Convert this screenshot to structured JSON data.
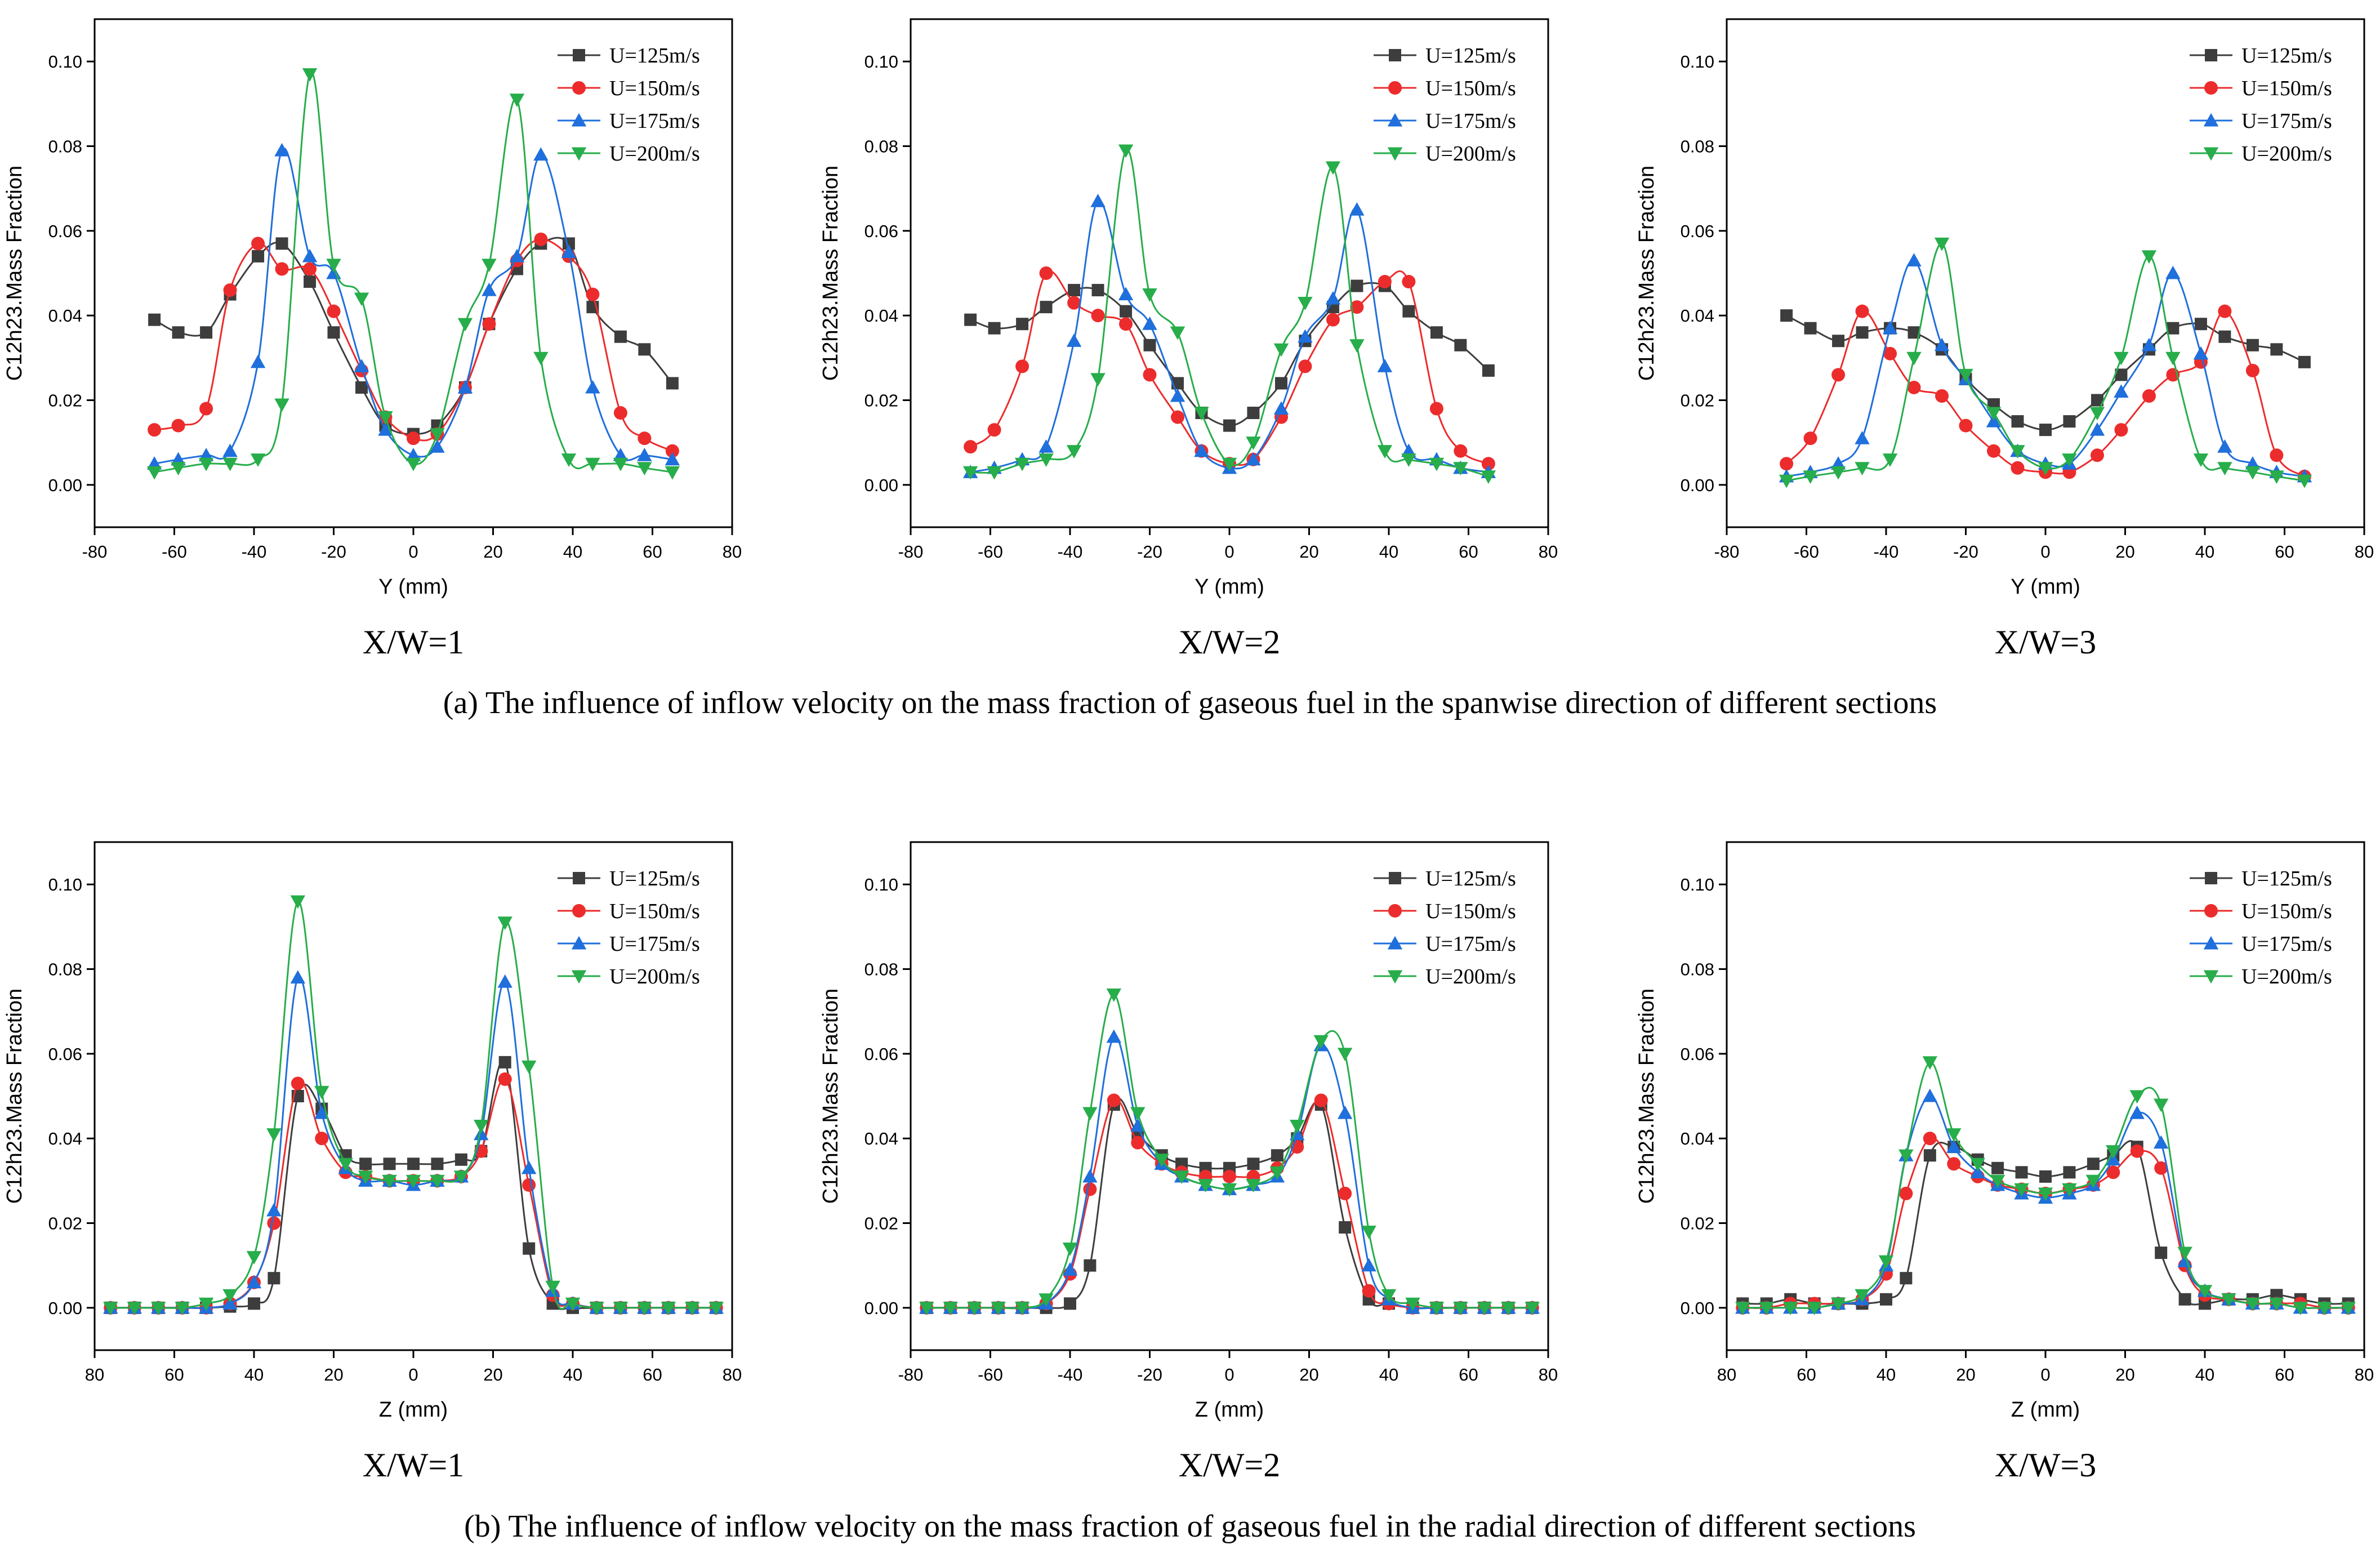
{
  "chart_data": [
    {
      "type": "line",
      "panel": "X/W=1",
      "row": "a",
      "xlabel": "Y (mm)",
      "ylabel": "C12h23.Mass Fraction",
      "xlim": [
        -80,
        80
      ],
      "ylim": [
        -0.01,
        0.11
      ],
      "xticks": [
        -80,
        -60,
        -40,
        -20,
        0,
        20,
        40,
        60,
        80
      ],
      "xtick_labels": [
        "-80",
        "-60",
        "-40",
        "-20",
        "0",
        "20",
        "40",
        "60",
        "80"
      ],
      "yticks": [
        0.0,
        0.02,
        0.04,
        0.06,
        0.08,
        0.1
      ],
      "ytick_labels": [
        "0.00",
        "0.02",
        "0.04",
        "0.06",
        "0.08",
        "0.10"
      ],
      "x": [
        -65,
        -59,
        -52,
        -46,
        -39,
        -33,
        -26,
        -20,
        -13,
        -7,
        0,
        6,
        13,
        19,
        26,
        32,
        39,
        45,
        52,
        58,
        65
      ],
      "series": [
        {
          "name": "U=125m/s",
          "values": [
            0.039,
            0.036,
            0.036,
            0.045,
            0.054,
            0.057,
            0.048,
            0.036,
            0.023,
            0.014,
            0.012,
            0.014,
            0.023,
            0.038,
            0.051,
            0.057,
            0.057,
            0.042,
            0.035,
            0.032,
            0.024
          ]
        },
        {
          "name": "U=150m/s",
          "values": [
            0.013,
            0.014,
            0.018,
            0.046,
            0.057,
            0.051,
            0.051,
            0.041,
            0.027,
            0.016,
            0.011,
            0.012,
            0.023,
            0.038,
            0.053,
            0.058,
            0.054,
            0.045,
            0.017,
            0.011,
            0.008
          ]
        },
        {
          "name": "U=175m/s",
          "values": [
            0.005,
            0.006,
            0.007,
            0.008,
            0.029,
            0.079,
            0.054,
            0.05,
            0.028,
            0.013,
            0.007,
            0.009,
            0.023,
            0.046,
            0.054,
            0.078,
            0.055,
            0.023,
            0.007,
            0.007,
            0.006
          ]
        },
        {
          "name": "U=200m/s",
          "values": [
            0.003,
            0.004,
            0.005,
            0.005,
            0.006,
            0.019,
            0.097,
            0.052,
            0.044,
            0.016,
            0.005,
            0.012,
            0.038,
            0.052,
            0.091,
            0.03,
            0.006,
            0.005,
            0.005,
            0.004,
            0.003
          ]
        }
      ]
    },
    {
      "type": "line",
      "panel": "X/W=2",
      "row": "a",
      "xlabel": "Y (mm)",
      "ylabel": "C12h23.Mass Fraction",
      "xlim": [
        -80,
        80
      ],
      "ylim": [
        -0.01,
        0.11
      ],
      "xticks": [
        -80,
        -60,
        -40,
        -20,
        0,
        20,
        40,
        60,
        80
      ],
      "xtick_labels": [
        "-80",
        "-60",
        "-40",
        "-20",
        "0",
        "20",
        "40",
        "60",
        "80"
      ],
      "yticks": [
        0.0,
        0.02,
        0.04,
        0.06,
        0.08,
        0.1
      ],
      "ytick_labels": [
        "0.00",
        "0.02",
        "0.04",
        "0.06",
        "0.08",
        "0.10"
      ],
      "x": [
        -65,
        -59,
        -52,
        -46,
        -39,
        -33,
        -26,
        -20,
        -13,
        -7,
        0,
        6,
        13,
        19,
        26,
        32,
        39,
        45,
        52,
        58,
        65
      ],
      "series": [
        {
          "name": "U=125m/s",
          "values": [
            0.039,
            0.037,
            0.038,
            0.042,
            0.046,
            0.046,
            0.041,
            0.033,
            0.024,
            0.017,
            0.014,
            0.017,
            0.024,
            0.034,
            0.042,
            0.047,
            0.047,
            0.041,
            0.036,
            0.033,
            0.027
          ]
        },
        {
          "name": "U=150m/s",
          "values": [
            0.009,
            0.013,
            0.028,
            0.05,
            0.043,
            0.04,
            0.038,
            0.026,
            0.016,
            0.008,
            0.005,
            0.006,
            0.016,
            0.028,
            0.039,
            0.042,
            0.048,
            0.048,
            0.018,
            0.008,
            0.005
          ]
        },
        {
          "name": "U=175m/s",
          "values": [
            0.003,
            0.004,
            0.006,
            0.009,
            0.034,
            0.067,
            0.045,
            0.038,
            0.021,
            0.008,
            0.004,
            0.006,
            0.018,
            0.035,
            0.044,
            0.065,
            0.028,
            0.008,
            0.006,
            0.004,
            0.003
          ]
        },
        {
          "name": "U=200m/s",
          "values": [
            0.003,
            0.003,
            0.005,
            0.006,
            0.008,
            0.025,
            0.079,
            0.045,
            0.036,
            0.017,
            0.005,
            0.01,
            0.032,
            0.043,
            0.075,
            0.033,
            0.008,
            0.006,
            0.005,
            0.004,
            0.002
          ]
        }
      ]
    },
    {
      "type": "line",
      "panel": "X/W=3",
      "row": "a",
      "xlabel": "Y (mm)",
      "ylabel": "C12h23.Mass Fraction",
      "xlim": [
        -80,
        80
      ],
      "ylim": [
        -0.01,
        0.11
      ],
      "xticks": [
        -80,
        -60,
        -40,
        -20,
        0,
        20,
        40,
        60,
        80
      ],
      "xtick_labels": [
        "-80",
        "-60",
        "-40",
        "-20",
        "0",
        "20",
        "40",
        "60",
        "80"
      ],
      "yticks": [
        0.0,
        0.02,
        0.04,
        0.06,
        0.08,
        0.1
      ],
      "ytick_labels": [
        "0.00",
        "0.02",
        "0.04",
        "0.06",
        "0.08",
        "0.10"
      ],
      "x": [
        -65,
        -59,
        -52,
        -46,
        -39,
        -33,
        -26,
        -20,
        -13,
        -7,
        0,
        6,
        13,
        19,
        26,
        32,
        39,
        45,
        52,
        58,
        65
      ],
      "series": [
        {
          "name": "U=125m/s",
          "values": [
            0.04,
            0.037,
            0.034,
            0.036,
            0.037,
            0.036,
            0.032,
            0.025,
            0.019,
            0.015,
            0.013,
            0.015,
            0.02,
            0.026,
            0.032,
            0.037,
            0.038,
            0.035,
            0.033,
            0.032,
            0.029
          ]
        },
        {
          "name": "U=150m/s",
          "values": [
            0.005,
            0.011,
            0.026,
            0.041,
            0.031,
            0.023,
            0.021,
            0.014,
            0.008,
            0.004,
            0.003,
            0.003,
            0.007,
            0.013,
            0.021,
            0.026,
            0.029,
            0.041,
            0.027,
            0.007,
            0.002
          ]
        },
        {
          "name": "U=175m/s",
          "values": [
            0.002,
            0.003,
            0.005,
            0.011,
            0.037,
            0.053,
            0.033,
            0.025,
            0.015,
            0.008,
            0.005,
            0.005,
            0.013,
            0.022,
            0.033,
            0.05,
            0.031,
            0.009,
            0.005,
            0.003,
            0.002
          ]
        },
        {
          "name": "U=200m/s",
          "values": [
            0.001,
            0.002,
            0.003,
            0.004,
            0.006,
            0.03,
            0.057,
            0.026,
            0.017,
            0.008,
            0.004,
            0.006,
            0.017,
            0.03,
            0.054,
            0.03,
            0.006,
            0.004,
            0.003,
            0.002,
            0.001
          ]
        }
      ]
    },
    {
      "type": "line",
      "panel": "X/W=1",
      "row": "b",
      "xlabel": "Z (mm)",
      "ylabel": "C12h23.Mass Fraction",
      "xlim": [
        -80,
        80
      ],
      "ylim": [
        -0.01,
        0.11
      ],
      "xticks": [
        -80,
        -60,
        -40,
        -20,
        0,
        20,
        40,
        60,
        80
      ],
      "xtick_labels": [
        "80",
        "60",
        "40",
        "20",
        "0",
        "20",
        "40",
        "60",
        "80"
      ],
      "yticks": [
        0.0,
        0.02,
        0.04,
        0.06,
        0.08,
        0.1
      ],
      "ytick_labels": [
        "0.00",
        "0.02",
        "0.04",
        "0.06",
        "0.08",
        "0.10"
      ],
      "x": [
        -76,
        -70,
        -64,
        -58,
        -52,
        -46,
        -40,
        -35,
        -29,
        -23,
        -17,
        -12,
        -6,
        0,
        6,
        12,
        17,
        23,
        29,
        35,
        40,
        46,
        52,
        58,
        64,
        70,
        76
      ],
      "series": [
        {
          "name": "U=125m/s",
          "values": [
            0,
            0,
            0,
            0,
            0,
            0.0003,
            0.001,
            0.007,
            0.05,
            0.047,
            0.036,
            0.034,
            0.034,
            0.034,
            0.034,
            0.035,
            0.037,
            0.058,
            0.014,
            0.001,
            0,
            0,
            0,
            0,
            0,
            0,
            0
          ]
        },
        {
          "name": "U=150m/s",
          "values": [
            0,
            0,
            0,
            0,
            0,
            0.001,
            0.006,
            0.02,
            0.053,
            0.04,
            0.032,
            0.031,
            0.03,
            0.03,
            0.03,
            0.031,
            0.037,
            0.054,
            0.029,
            0.003,
            0.001,
            0,
            0,
            0,
            0,
            0,
            0
          ]
        },
        {
          "name": "U=175m/s",
          "values": [
            0,
            0,
            0,
            0,
            0,
            0.001,
            0.006,
            0.023,
            0.078,
            0.046,
            0.033,
            0.03,
            0.03,
            0.029,
            0.03,
            0.031,
            0.041,
            0.077,
            0.033,
            0.004,
            0.001,
            0,
            0,
            0,
            0,
            0,
            0
          ]
        },
        {
          "name": "U=200m/s",
          "values": [
            0,
            0,
            0,
            0,
            0.001,
            0.003,
            0.012,
            0.041,
            0.096,
            0.051,
            0.034,
            0.031,
            0.03,
            0.03,
            0.03,
            0.031,
            0.043,
            0.091,
            0.057,
            0.005,
            0.001,
            0,
            0,
            0,
            0,
            0,
            0
          ]
        }
      ]
    },
    {
      "type": "line",
      "panel": "X/W=2",
      "row": "b",
      "xlabel": "Z (mm)",
      "ylabel": "C12h23.Mass Fraction",
      "xlim": [
        -80,
        80
      ],
      "ylim": [
        -0.01,
        0.11
      ],
      "xticks": [
        -80,
        -60,
        -40,
        -20,
        0,
        20,
        40,
        60,
        80
      ],
      "xtick_labels": [
        "-80",
        "-60",
        "-40",
        "-20",
        "0",
        "20",
        "40",
        "60",
        "80"
      ],
      "yticks": [
        0.0,
        0.02,
        0.04,
        0.06,
        0.08,
        0.1
      ],
      "ytick_labels": [
        "0.00",
        "0.02",
        "0.04",
        "0.06",
        "0.08",
        "0.10"
      ],
      "x": [
        -76,
        -70,
        -64,
        -58,
        -52,
        -46,
        -40,
        -35,
        -29,
        -23,
        -17,
        -12,
        -6,
        0,
        6,
        12,
        17,
        23,
        29,
        35,
        40,
        46,
        52,
        58,
        64,
        70,
        76
      ],
      "series": [
        {
          "name": "U=125m/s",
          "values": [
            0,
            0,
            0,
            0,
            0,
            0,
            0.001,
            0.01,
            0.048,
            0.041,
            0.036,
            0.034,
            0.033,
            0.033,
            0.034,
            0.036,
            0.04,
            0.048,
            0.019,
            0.002,
            0.001,
            0,
            0,
            0,
            0,
            0,
            0
          ]
        },
        {
          "name": "U=150m/s",
          "values": [
            0,
            0,
            0,
            0,
            0,
            0.001,
            0.008,
            0.028,
            0.049,
            0.039,
            0.034,
            0.032,
            0.031,
            0.031,
            0.031,
            0.033,
            0.038,
            0.049,
            0.027,
            0.004,
            0.001,
            0,
            0,
            0,
            0,
            0,
            0
          ]
        },
        {
          "name": "U=175m/s",
          "values": [
            0,
            0,
            0,
            0,
            0,
            0.001,
            0.009,
            0.031,
            0.064,
            0.043,
            0.034,
            0.031,
            0.029,
            0.028,
            0.029,
            0.031,
            0.041,
            0.062,
            0.046,
            0.01,
            0.002,
            0,
            0,
            0,
            0,
            0,
            0
          ]
        },
        {
          "name": "U=200m/s",
          "values": [
            0,
            0,
            0,
            0,
            0,
            0.002,
            0.014,
            0.046,
            0.074,
            0.046,
            0.035,
            0.031,
            0.029,
            0.028,
            0.029,
            0.032,
            0.043,
            0.063,
            0.06,
            0.018,
            0.003,
            0.001,
            0,
            0,
            0,
            0,
            0
          ]
        }
      ]
    },
    {
      "type": "line",
      "panel": "X/W=3",
      "row": "b",
      "xlabel": "Z (mm)",
      "ylabel": "C12h23.Mass Fraction",
      "xlim": [
        -80,
        80
      ],
      "ylim": [
        -0.01,
        0.11
      ],
      "xticks": [
        -80,
        -60,
        -40,
        -20,
        0,
        20,
        40,
        60,
        80
      ],
      "xtick_labels": [
        "80",
        "60",
        "40",
        "20",
        "0",
        "20",
        "40",
        "60",
        "80"
      ],
      "yticks": [
        0.0,
        0.02,
        0.04,
        0.06,
        0.08,
        0.1
      ],
      "ytick_labels": [
        "0.00",
        "0.02",
        "0.04",
        "0.06",
        "0.08",
        "0.10"
      ],
      "x": [
        -76,
        -70,
        -64,
        -58,
        -52,
        -46,
        -40,
        -35,
        -29,
        -23,
        -17,
        -12,
        -6,
        0,
        6,
        12,
        17,
        23,
        29,
        35,
        40,
        46,
        52,
        58,
        64,
        70,
        76
      ],
      "series": [
        {
          "name": "U=125m/s",
          "values": [
            0.001,
            0.001,
            0.002,
            0.001,
            0.001,
            0.001,
            0.002,
            0.007,
            0.036,
            0.038,
            0.035,
            0.033,
            0.032,
            0.031,
            0.032,
            0.034,
            0.036,
            0.038,
            0.013,
            0.002,
            0.001,
            0.002,
            0.002,
            0.003,
            0.002,
            0.001,
            0.001
          ]
        },
        {
          "name": "U=150m/s",
          "values": [
            0,
            0,
            0.001,
            0.001,
            0.001,
            0.002,
            0.008,
            0.027,
            0.04,
            0.034,
            0.031,
            0.029,
            0.028,
            0.027,
            0.028,
            0.029,
            0.032,
            0.037,
            0.033,
            0.01,
            0.003,
            0.002,
            0.001,
            0.001,
            0.001,
            0,
            0
          ]
        },
        {
          "name": "U=175m/s",
          "values": [
            0,
            0,
            0,
            0,
            0.001,
            0.002,
            0.01,
            0.036,
            0.05,
            0.038,
            0.032,
            0.029,
            0.027,
            0.026,
            0.027,
            0.029,
            0.035,
            0.046,
            0.039,
            0.011,
            0.004,
            0.002,
            0.001,
            0.001,
            0,
            0,
            0
          ]
        },
        {
          "name": "U=200m/s",
          "values": [
            0,
            0,
            0,
            0,
            0.001,
            0.003,
            0.011,
            0.036,
            0.058,
            0.041,
            0.034,
            0.03,
            0.028,
            0.027,
            0.028,
            0.03,
            0.037,
            0.05,
            0.048,
            0.013,
            0.004,
            0.002,
            0.001,
            0.001,
            0,
            0,
            0
          ]
        }
      ]
    }
  ],
  "series_styles": [
    {
      "name": "U=125m/s",
      "color": "#3d3d3d",
      "marker": "square"
    },
    {
      "name": "U=150m/s",
      "color": "#ec2c2c",
      "marker": "circle"
    },
    {
      "name": "U=175m/s",
      "color": "#1f6fdc",
      "marker": "triangle-up"
    },
    {
      "name": "U=200m/s",
      "color": "#27ad4a",
      "marker": "triangle-down"
    }
  ],
  "captions": {
    "a": "(a) The influence of inflow velocity on the mass fraction of gaseous fuel in the spanwise direction of different sections",
    "b": "(b) The influence of inflow velocity on the mass fraction of gaseous fuel in the radial direction of different sections"
  }
}
